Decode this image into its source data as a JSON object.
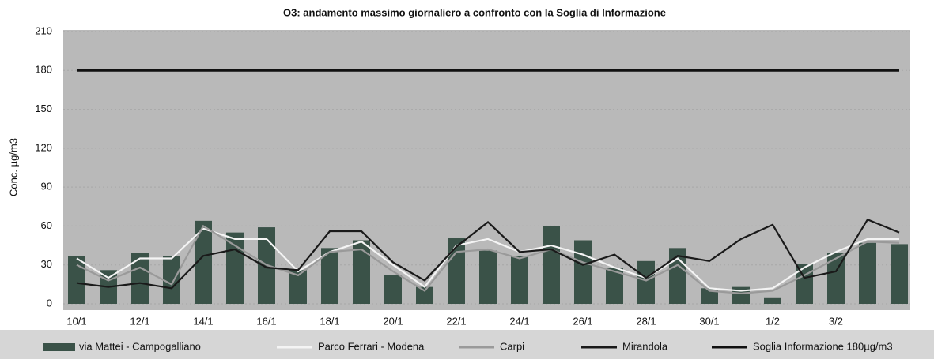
{
  "chart_data": {
    "type": "bar",
    "title": "O3: andamento massimo giornaliero a confronto con la Soglia di Informazione",
    "y_label": "Conc. µg/m3",
    "categories": [
      "10/1",
      null,
      "12/1",
      null,
      "14/1",
      null,
      "16/1",
      null,
      "18/1",
      null,
      "20/1",
      null,
      "22/1",
      null,
      "24/1",
      null,
      "26/1",
      null,
      "28/1",
      null,
      "30/1",
      null,
      "1/2",
      null,
      "3/2",
      null,
      null
    ],
    "series": [
      {
        "name": "via Mattei - Campogalliano",
        "type": "bar",
        "color": "#3a5248",
        "values": [
          37,
          26,
          39,
          37,
          64,
          55,
          59,
          26,
          43,
          49,
          22,
          13,
          51,
          41,
          37,
          60,
          49,
          28,
          33,
          43,
          12,
          13,
          5,
          31,
          39,
          47,
          46
        ]
      },
      {
        "name": "Parco Ferrari - Modena",
        "type": "line",
        "color": "#f4f4f4",
        "values": [
          35,
          20,
          35,
          35,
          58,
          50,
          50,
          25,
          40,
          48,
          30,
          13,
          45,
          50,
          40,
          45,
          38,
          28,
          20,
          35,
          12,
          10,
          12,
          28,
          40,
          50,
          50
        ]
      },
      {
        "name": "Carpi",
        "type": "line",
        "color": "#9a9a9a",
        "values": [
          30,
          18,
          28,
          15,
          60,
          45,
          30,
          22,
          40,
          42,
          25,
          10,
          40,
          42,
          35,
          42,
          32,
          25,
          18,
          30,
          10,
          8,
          10,
          22,
          35,
          48,
          47
        ]
      },
      {
        "name": "Mirandola",
        "type": "line",
        "color": "#1a1a1a",
        "values": [
          16,
          13,
          16,
          12,
          37,
          42,
          28,
          26,
          56,
          56,
          32,
          18,
          44,
          63,
          40,
          42,
          30,
          38,
          20,
          37,
          33,
          50,
          61,
          20,
          25,
          65,
          55
        ]
      },
      {
        "name": "Soglia Informazione 180µg/m3",
        "type": "line",
        "color": "#111111",
        "values": [
          180,
          180,
          180,
          180,
          180,
          180,
          180,
          180,
          180,
          180,
          180,
          180,
          180,
          180,
          180,
          180,
          180,
          180,
          180,
          180,
          180,
          180,
          180,
          180,
          180,
          180,
          180
        ]
      }
    ],
    "ylim": [
      0,
      210
    ],
    "yticks": [
      0,
      30,
      60,
      90,
      120,
      150,
      180,
      210
    ],
    "grid": true
  }
}
